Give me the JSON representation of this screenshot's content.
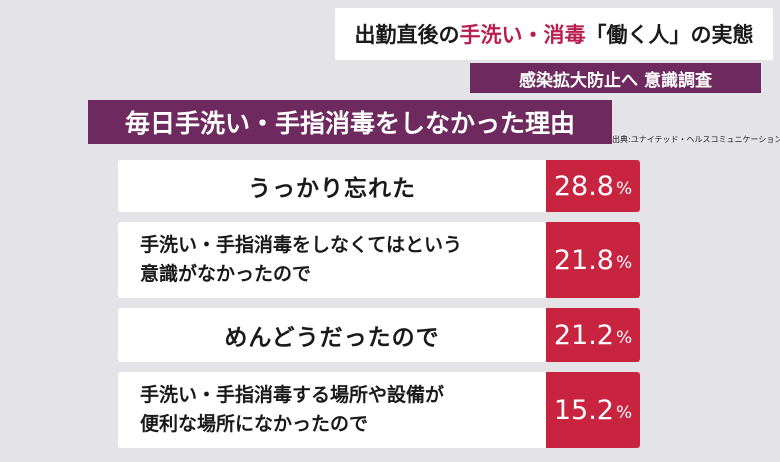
{
  "headline": {
    "part1": "出勤直後の",
    "highlight": "手洗い・消毒",
    "part2": "「働く人」の実態"
  },
  "subheadline": "感染拡大防止へ 意識調査",
  "title": "毎日手洗い・手指消毒をしなかった理由",
  "source": "出典:ユナイテッド・ヘルスコミュニケーション",
  "items": [
    {
      "label": "うっかり忘れた",
      "value": "28.8",
      "unit": "%"
    },
    {
      "label": "手洗い・手指消毒をしなくてはという\n意識がなかったので",
      "value": "21.8",
      "unit": "%"
    },
    {
      "label": "めんどうだったので",
      "value": "21.2",
      "unit": "%"
    },
    {
      "label": "手洗い・手指消毒する場所や設備が\n便利な場所になかったので",
      "value": "15.2",
      "unit": "%"
    }
  ],
  "colors": {
    "accent_red": "#c8243f",
    "purple": "#6e2a5e",
    "headline_highlight": "#b81e4e"
  }
}
